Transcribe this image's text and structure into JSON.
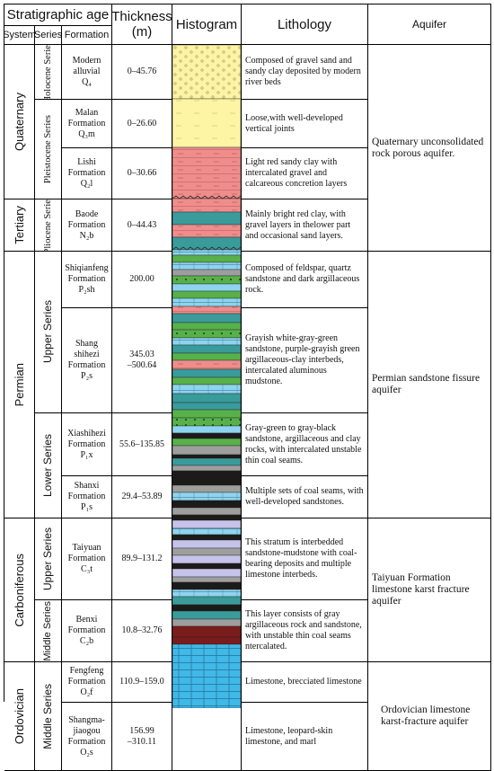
{
  "headers": {
    "strat_age": "Stratigraphic age",
    "system": "System",
    "series": "Series",
    "formation": "Formation",
    "thickness": "Thickness",
    "thickness_unit": "(m)",
    "histogram": "Histogram",
    "lithology": "Lithology",
    "aquifer": "Aquifer"
  },
  "systems": {
    "quaternary": "Quaternary",
    "tertiary": "Tertiary",
    "permian": "Permian",
    "carboniferous": "Carboniferous",
    "ordovician": "Ordovician"
  },
  "series": {
    "holocene": "Holocene Series",
    "pleistocene": "Pleistocene Series",
    "pliocene": "Pliocene Series",
    "upper_p": "Upper Series",
    "lower_p": "Lower Series",
    "upper_c": "Upper Series",
    "middle_c": "Middle Series",
    "middle_o": "Middle Series"
  },
  "rows": [
    {
      "formation": [
        "Modern",
        "alluvial",
        "Q₄"
      ],
      "thickness": [
        "0–45.76"
      ],
      "lithology": "Composed of gravel sand and sandy clay deposited by modern river beds"
    },
    {
      "formation": [
        "Malan",
        "Formation",
        "Q₃m"
      ],
      "thickness": [
        "0–26.60"
      ],
      "lithology": "Loose,with well-developed vertical joints"
    },
    {
      "formation": [
        "Lishi",
        "Formation",
        "Q₂l"
      ],
      "thickness": [
        "0–30.66"
      ],
      "lithology": "Light red sandy clay with intercalated gravel and calcareous concretion layers"
    },
    {
      "formation": [
        "Baode",
        "Formation",
        "N₂b"
      ],
      "thickness": [
        "0–44.43"
      ],
      "lithology": "Mainly bright red clay, with gravel layers in thelower part and occasional sand layers."
    },
    {
      "formation": [
        "Shiqianfeng",
        "Formation",
        "P₂sh"
      ],
      "thickness": [
        "200.00"
      ],
      "lithology": "Composed of feldspar, quartz sandstone and dark argillaceous rock."
    },
    {
      "formation": [
        "Shang",
        "shihezi",
        "Formation",
        "P₂s"
      ],
      "thickness": [
        "345.03",
        "–500.64"
      ],
      "lithology": "Grayish white-gray-green sandstone, purple-grayish green argillaceous-clay interbeds, intercalated aluminous mudstone."
    },
    {
      "formation": [
        "Xiashihezi",
        "Formation",
        "P₁x"
      ],
      "thickness": [
        "55.6–135.85"
      ],
      "lithology": "Gray-green to gray-black sandstone, argillaceous and clay rocks, with intercalated unstable thin coal seams."
    },
    {
      "formation": [
        "Shanxi",
        "Formation",
        "P₁s"
      ],
      "thickness": [
        "29.4–53.89"
      ],
      "lithology": "Multiple sets of coal seams, with well-developed sandstones."
    },
    {
      "formation": [
        "Taiyuan",
        "Formation",
        "C₃t"
      ],
      "thickness": [
        "89.9–131.2"
      ],
      "lithology": "This stratum is interbedded sandstone-mudstone with coal-bearing deposits and multiple limestone interbeds."
    },
    {
      "formation": [
        "Benxi",
        "Formation",
        "C₂b"
      ],
      "thickness": [
        "10.8–32.76"
      ],
      "lithology": "This layer consists of gray argillaceous rock and sandstone, with unstable thin coal seams ntercalated."
    },
    {
      "formation": [
        "Fengfeng",
        "Formation",
        "O₂f"
      ],
      "thickness": [
        "110.9–159.0"
      ],
      "lithology": "Limestone, brecciated limestone"
    },
    {
      "formation": [
        "Shangma-",
        "jiaogou",
        "Formation",
        "O₂s"
      ],
      "thickness": [
        "156.99",
        "–310.11"
      ],
      "lithology": "Limestone, leopard-skin limestone, and marl"
    }
  ],
  "aquifers": {
    "quaternary": "Quaternary unconsolidated rock porous aquifer.",
    "permian": "Permian sandstone fissure aquifer",
    "taiyuan": "Taiyuan Formation limestone karst fracture aquifer",
    "ordovician": "Ordovician limestone karst-fracture aquifer"
  },
  "colors": {
    "sand_yellow": "#fbf3a6",
    "loess_yellow": "#fdf5a3",
    "red_clay": "#ef8d8d",
    "teal": "#3a9b9b",
    "green": "#58b04a",
    "sky_blue": "#8fd4ef",
    "limestone_blue": "#40b8e8",
    "coal_black": "#1d1a1a",
    "gray": "#9e9e9e",
    "lavender": "#c5c3ea",
    "maroon": "#7a1c1c"
  }
}
